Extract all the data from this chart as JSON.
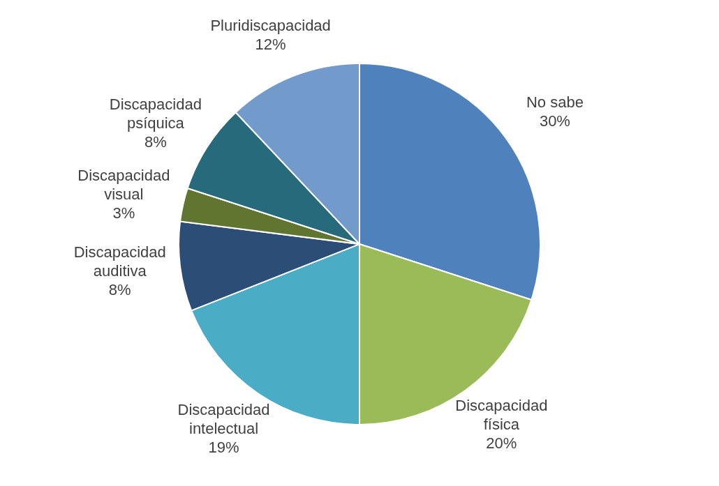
{
  "chart_data": {
    "type": "pie",
    "categories": [
      "No sabe",
      "Discapacidad física",
      "Discapacidad intelectual",
      "Discapacidad auditiva",
      "Discapacidad visual",
      "Discapacidad psíquica",
      "Pluridiscapacidad"
    ],
    "values": [
      30,
      20,
      19,
      8,
      3,
      8,
      12
    ],
    "value_labels": [
      "30%",
      "20%",
      "19%",
      "8%",
      "3%",
      "8%",
      "12%"
    ],
    "colors": [
      "#4f81bd",
      "#9bbb59",
      "#4bacc6",
      "#2c4d75",
      "#5f7530",
      "#276a7c",
      "#729aca"
    ],
    "legend": false
  }
}
